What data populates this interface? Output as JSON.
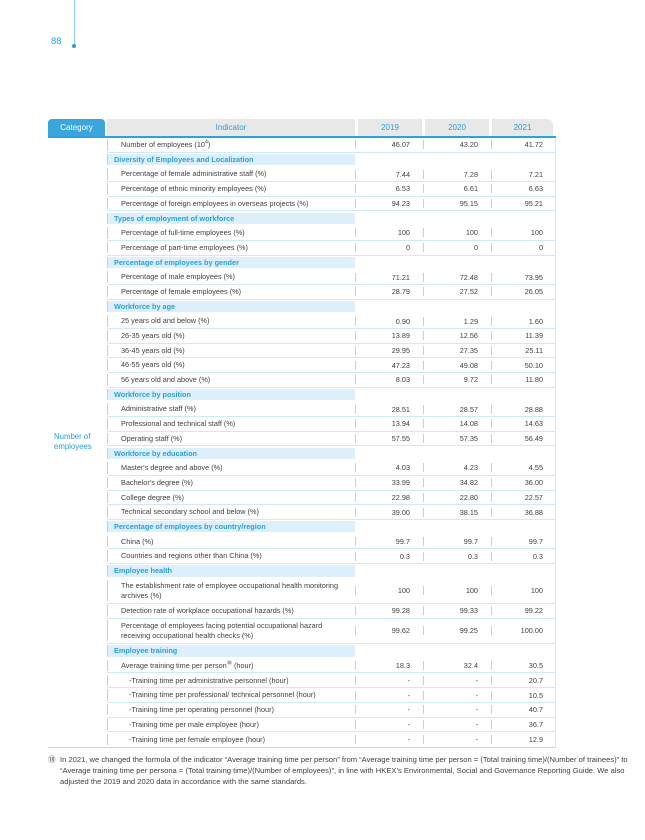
{
  "page": {
    "number": "88"
  },
  "colors": {
    "accent_blue": "#2c9fd6",
    "tab_blue": "#3aa6db",
    "header_gray": "#e8e8e9",
    "section_band": "#ddeffa",
    "grid_blue": "#a9daf2",
    "underline_blue": "#2aa5dc",
    "text_dark": "#414042"
  },
  "table": {
    "header": {
      "category": "Category",
      "indicator": "Indicator",
      "years": [
        "2019",
        "2020",
        "2021"
      ]
    },
    "category_label": "Number of employees",
    "rows": [
      {
        "type": "data",
        "label": "Number of employees (10",
        "sup": "4",
        "label2": ")",
        "values": [
          "46.07",
          "43.20",
          "41.72"
        ]
      },
      {
        "type": "section",
        "label": "Diversity of Employees and Localization"
      },
      {
        "type": "data",
        "label": "Percentage of female administrative staff (%)",
        "values": [
          "7.44",
          "7.28",
          "7.21"
        ]
      },
      {
        "type": "data",
        "label": "Percentage of ethnic minority employees (%)",
        "values": [
          "6.53",
          "6.61",
          "6.63"
        ]
      },
      {
        "type": "data",
        "label": "Percentage of foreign employees in overseas projects (%)",
        "values": [
          "94.23",
          "95.15",
          "95.21"
        ]
      },
      {
        "type": "section",
        "label": "Types of employment of workforce"
      },
      {
        "type": "data",
        "label": "Percentage of full-time employees (%)",
        "values": [
          "100",
          "100",
          "100"
        ]
      },
      {
        "type": "data",
        "label": "Percentage of part-time employees (%)",
        "values": [
          "0",
          "0",
          "0"
        ]
      },
      {
        "type": "section",
        "label": "Percentage of employees by gender"
      },
      {
        "type": "data",
        "label": "Percentage of male employees (%)",
        "values": [
          "71.21",
          "72.48",
          "73.95"
        ]
      },
      {
        "type": "data",
        "label": "Percentage of female employees (%)",
        "values": [
          "28.79",
          "27.52",
          "26.05"
        ]
      },
      {
        "type": "section",
        "label": "Workforce by age"
      },
      {
        "type": "data",
        "label": "25 years old and below (%)",
        "values": [
          "0.90",
          "1.29",
          "1.60"
        ]
      },
      {
        "type": "data",
        "label": "26-35 years old (%)",
        "values": [
          "13.89",
          "12.56",
          "11.39"
        ]
      },
      {
        "type": "data",
        "label": "36-45 years old (%)",
        "values": [
          "29.95",
          "27.35",
          "25.11"
        ]
      },
      {
        "type": "data",
        "label": "46-55 years old (%)",
        "values": [
          "47.23",
          "49.08",
          "50.10"
        ]
      },
      {
        "type": "data",
        "label": "56 years old and above (%)",
        "values": [
          "8.03",
          "9.72",
          "11.80"
        ]
      },
      {
        "type": "section",
        "label": "Workforce by position"
      },
      {
        "type": "data",
        "label": "Administrative staff (%)",
        "values": [
          "28.51",
          "28.57",
          "28.88"
        ]
      },
      {
        "type": "data",
        "label": "Professional and technical staff (%)",
        "values": [
          "13.94",
          "14.08",
          "14.63"
        ]
      },
      {
        "type": "data",
        "label": "Operating staff (%)",
        "values": [
          "57.55",
          "57.35",
          "56.49"
        ]
      },
      {
        "type": "section",
        "label": "Workforce by education"
      },
      {
        "type": "data",
        "label": "Master's degree and above (%)",
        "values": [
          "4.03",
          "4.23",
          "4.55"
        ]
      },
      {
        "type": "data",
        "label": "Bachelor's degree (%)",
        "values": [
          "33.99",
          "34.82",
          "36.00"
        ]
      },
      {
        "type": "data",
        "label": "College degree (%)",
        "values": [
          "22.98",
          "22.80",
          "22.57"
        ]
      },
      {
        "type": "data",
        "label": "Technical secondary school and below (%)",
        "values": [
          "39.00",
          "38.15",
          "36.88"
        ]
      },
      {
        "type": "section",
        "label": "Percentage of employees by country/region"
      },
      {
        "type": "data",
        "label": "China (%)",
        "values": [
          "99.7",
          "99.7",
          "99.7"
        ]
      },
      {
        "type": "data",
        "label": "Countries and regions other than China (%)",
        "values": [
          "0.3",
          "0.3",
          "0.3"
        ]
      },
      {
        "type": "section",
        "label": "Employee health"
      },
      {
        "type": "data",
        "tall": true,
        "label": "The establishment rate of employee occupational health monitoring archives (%)",
        "values": [
          "100",
          "100",
          "100"
        ]
      },
      {
        "type": "data",
        "label": "Detection rate of workplace occupational hazards (%)",
        "values": [
          "99.28",
          "99.33",
          "99.22"
        ]
      },
      {
        "type": "data",
        "tall": true,
        "label": "Percentage of employees facing potential occupational hazard receiving occupational health checks (%)",
        "values": [
          "99.62",
          "99.25",
          "100.00"
        ]
      },
      {
        "type": "section",
        "label": "Employee training"
      },
      {
        "type": "data",
        "label": "Average training time per person",
        "sup": "⑱",
        "label2": " (hour)",
        "values": [
          "18.3",
          "32.4",
          "30.5"
        ]
      },
      {
        "type": "data",
        "indent": 1,
        "label": "-Training time per administrative personnel (hour)",
        "values": [
          "-",
          "-",
          "20.7"
        ]
      },
      {
        "type": "data",
        "indent": 1,
        "label": "-Training time per professional/ technical personnel (hour)",
        "values": [
          "-",
          "-",
          "10.5"
        ]
      },
      {
        "type": "data",
        "indent": 1,
        "label": "-Training time per operating personnel (hour)",
        "values": [
          "-",
          "-",
          "40.7"
        ]
      },
      {
        "type": "data",
        "indent": 1,
        "label": "-Training time per male employee (hour)",
        "values": [
          "-",
          "-",
          "36.7"
        ]
      },
      {
        "type": "data",
        "indent": 1,
        "label": "-Training time per female employee (hour)",
        "values": [
          "-",
          "-",
          "12.9"
        ]
      }
    ]
  },
  "footnote": {
    "mark": "⑱",
    "text": "In 2021, we changed the formula of the indicator “Average training time per person” from “Average training time per person = (Total training time)/(Number of trainees)” to “Average training time per persona = (Total training time)/(Number of employees)”, in line with HKEX’s Environmental, Social and Governance Reporting Guide. We also adjusted the 2019 and 2020 data in accordance with the same standards."
  }
}
